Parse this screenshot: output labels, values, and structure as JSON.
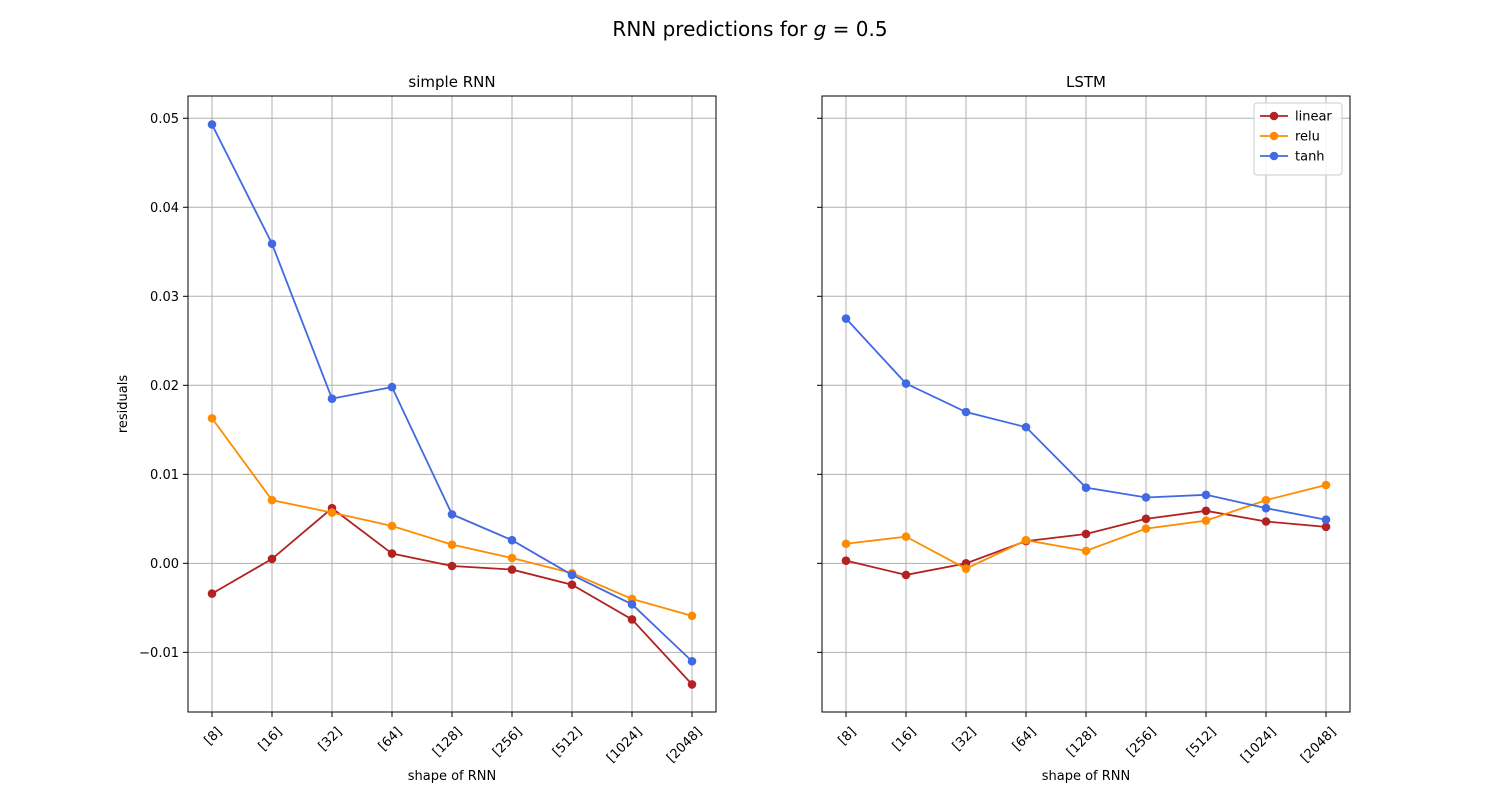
{
  "figure": {
    "title_prefix": "RNN predictions for ",
    "title_var": "g",
    "title_suffix": " = 0.5"
  },
  "chart_data": [
    {
      "type": "line",
      "title": "simple RNN",
      "xlabel": "shape of RNN",
      "ylabel": "residuals",
      "categories": [
        "[8]",
        "[16]",
        "[32]",
        "[64]",
        "[128]",
        "[256]",
        "[512]",
        "[1024]",
        "[2048]"
      ],
      "ylim": [
        -0.0167,
        0.0525
      ],
      "yticks": [
        -0.01,
        0.0,
        0.01,
        0.02,
        0.03,
        0.04,
        0.05
      ],
      "ytick_labels": [
        "−0.01",
        "0.00",
        "0.01",
        "0.02",
        "0.03",
        "0.04",
        "0.05"
      ],
      "grid": true,
      "series": [
        {
          "name": "linear",
          "color": "#b22222",
          "values": [
            -0.0034,
            0.0005,
            0.0062,
            0.0011,
            -0.0003,
            -0.0007,
            -0.0024,
            -0.0063,
            -0.0136
          ]
        },
        {
          "name": "relu",
          "color": "#ff8c00",
          "values": [
            0.0163,
            0.0071,
            0.0057,
            0.0042,
            0.0021,
            0.0006,
            -0.0011,
            -0.004,
            -0.0059
          ]
        },
        {
          "name": "tanh",
          "color": "#4169e1",
          "values": [
            0.0493,
            0.0359,
            0.0185,
            0.0198,
            0.0055,
            0.0026,
            -0.0013,
            -0.0046,
            -0.011
          ]
        }
      ]
    },
    {
      "type": "line",
      "title": "LSTM",
      "xlabel": "shape of RNN",
      "ylabel": "",
      "categories": [
        "[8]",
        "[16]",
        "[32]",
        "[64]",
        "[128]",
        "[256]",
        "[512]",
        "[1024]",
        "[2048]"
      ],
      "ylim": [
        -0.0167,
        0.0525
      ],
      "yticks": [
        -0.01,
        0.0,
        0.01,
        0.02,
        0.03,
        0.04,
        0.05
      ],
      "ytick_labels": [
        "",
        "",
        "",
        "",
        "",
        "",
        ""
      ],
      "grid": true,
      "legend": "top-right",
      "series": [
        {
          "name": "linear",
          "color": "#b22222",
          "values": [
            0.0003,
            -0.0013,
            0.0,
            0.0025,
            0.0033,
            0.005,
            0.0059,
            0.0047,
            0.0041
          ]
        },
        {
          "name": "relu",
          "color": "#ff8c00",
          "values": [
            0.0022,
            0.003,
            -0.0006,
            0.0026,
            0.0014,
            0.0039,
            0.0048,
            0.0071,
            0.0088
          ]
        },
        {
          "name": "tanh",
          "color": "#4169e1",
          "values": [
            0.0275,
            0.0202,
            0.017,
            0.0153,
            0.0085,
            0.0074,
            0.0077,
            0.0062,
            0.0049
          ]
        }
      ]
    }
  ]
}
